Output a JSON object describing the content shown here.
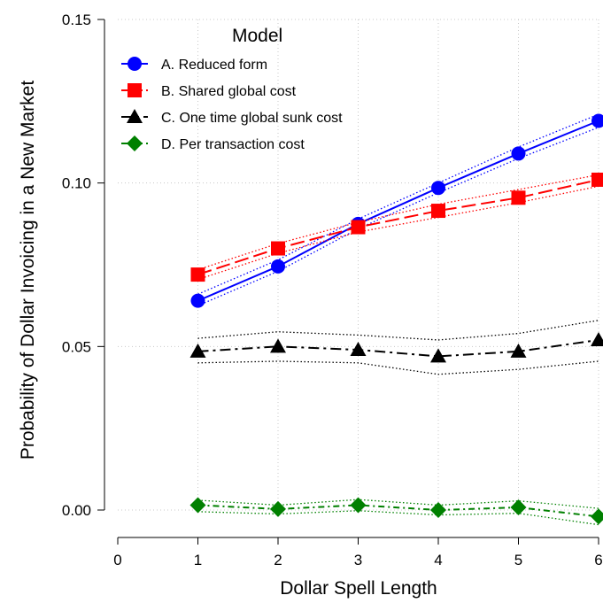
{
  "chart_data": {
    "type": "line",
    "xlabel": "Dollar Spell Length",
    "ylabel": "Probability of Dollar Invoicing in a New Market",
    "xlim": [
      0,
      6
    ],
    "ylim": [
      0,
      0.15
    ],
    "x_ticks": [
      "0",
      "1",
      "2",
      "3",
      "4",
      "5",
      "6"
    ],
    "y_ticks": [
      "0.00",
      "0.05",
      "0.10",
      "0.15"
    ],
    "y_tick_values": [
      0,
      0.05,
      0.1,
      0.15
    ],
    "grid": true,
    "legend": {
      "title": "Model",
      "position": "top-left"
    },
    "x": [
      1,
      2,
      3,
      4,
      5,
      6
    ],
    "series": [
      {
        "name": "A. Reduced form",
        "color": "#0000ff",
        "marker": "circle",
        "dash": "solid",
        "values": [
          0.064,
          0.0745,
          0.0875,
          0.0985,
          0.109,
          0.119
        ],
        "ci_low": [
          0.0625,
          0.073,
          0.086,
          0.097,
          0.1075,
          0.117
        ],
        "ci_high": [
          0.066,
          0.0765,
          0.089,
          0.1,
          0.111,
          0.121
        ]
      },
      {
        "name": "B. Shared global cost",
        "color": "#ff0000",
        "marker": "square",
        "dash": "longdash",
        "values": [
          0.072,
          0.08,
          0.0865,
          0.0915,
          0.0955,
          0.101
        ],
        "ci_low": [
          0.0705,
          0.0785,
          0.085,
          0.0895,
          0.094,
          0.099
        ],
        "ci_high": [
          0.0735,
          0.0815,
          0.088,
          0.0935,
          0.098,
          0.1025
        ]
      },
      {
        "name": "C. One time global sunk cost",
        "color": "#000000",
        "marker": "triangle",
        "dash": "dashdot",
        "values": [
          0.0485,
          0.05,
          0.049,
          0.047,
          0.0485,
          0.052
        ],
        "ci_low": [
          0.045,
          0.0455,
          0.045,
          0.0415,
          0.043,
          0.0455
        ],
        "ci_high": [
          0.0525,
          0.0545,
          0.0535,
          0.052,
          0.054,
          0.058
        ]
      },
      {
        "name": "D. Per transaction cost",
        "color": "#008000",
        "marker": "diamond",
        "dash": "shortdashdot",
        "values": [
          0.0015,
          0.0003,
          0.0015,
          0.0,
          0.0008,
          -0.002
        ],
        "ci_low": [
          -0.0005,
          -0.0012,
          -0.0002,
          -0.0015,
          -0.001,
          -0.0045
        ],
        "ci_high": [
          0.003,
          0.0015,
          0.0032,
          0.0015,
          0.0028,
          0.0005
        ]
      }
    ]
  }
}
